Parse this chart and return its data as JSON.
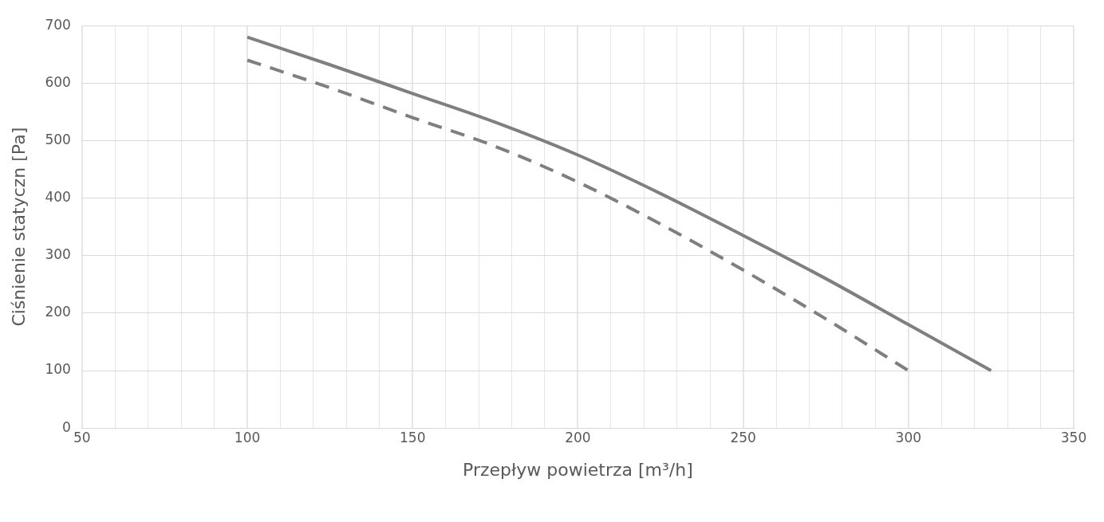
{
  "chart_data": {
    "type": "line",
    "xlabel": "Przepływ powietrza [m³/h]",
    "ylabel": "Ciśnienie statyczn [Pa]",
    "xlim": [
      50,
      350
    ],
    "xticks": [
      50,
      {
        "value": 60,
        "label": null
      },
      {
        "value": 70,
        "label": null
      },
      {
        "value": 80,
        "label": null
      },
      {
        "value": 90,
        "label": null
      },
      100,
      {
        "value": 110,
        "label": null
      },
      {
        "value": 120,
        "label": null
      },
      {
        "value": 130,
        "label": null
      },
      {
        "value": 140,
        "label": null
      },
      150,
      {
        "value": 160,
        "label": null
      },
      {
        "value": 170,
        "label": null
      },
      {
        "value": 180,
        "label": null
      },
      {
        "value": 190,
        "label": null
      },
      200,
      {
        "value": 210,
        "label": null
      },
      {
        "value": 220,
        "label": null
      },
      {
        "value": 230,
        "label": null
      },
      {
        "value": 240,
        "label": null
      },
      250,
      {
        "value": 260,
        "label": null
      },
      {
        "value": 270,
        "label": null
      },
      {
        "value": 280,
        "label": null
      },
      {
        "value": 290,
        "label": null
      },
      300,
      {
        "value": 310,
        "label": null
      },
      {
        "value": 320,
        "label": null
      },
      {
        "value": 330,
        "label": null
      },
      {
        "value": 340,
        "label": null
      },
      350
    ],
    "ylim": [
      0,
      700
    ],
    "yticks": [
      0,
      100,
      200,
      300,
      400,
      500,
      600,
      700
    ],
    "grid": true,
    "marker": "none",
    "series": [
      {
        "color": "#7f7f7f",
        "line_style": "solid",
        "x": [
          100,
          125,
          150,
          175,
          200,
          225,
          250,
          275,
          300,
          325
        ],
        "values": [
          680,
          632,
          582,
          532,
          475,
          408,
          335,
          260,
          180,
          100
        ]
      },
      {
        "color": "#7f7f7f",
        "line_style": "dashed",
        "x": [
          100,
          125,
          150,
          175,
          200,
          225,
          250,
          275,
          300
        ],
        "values": [
          640,
          592,
          540,
          490,
          428,
          355,
          275,
          190,
          100
        ]
      }
    ]
  }
}
